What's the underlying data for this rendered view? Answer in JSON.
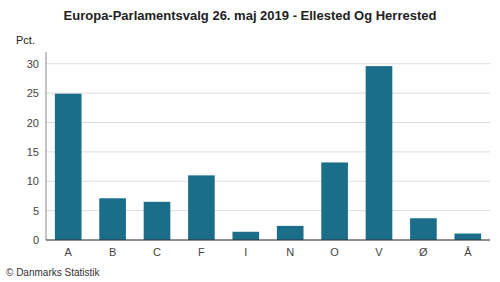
{
  "chart_data": {
    "type": "bar",
    "title": "Europa-Parlamentsvalg 26. maj 2019 - Ellested Og Herrested",
    "ylabel": "Pct.",
    "categories": [
      "A",
      "B",
      "C",
      "F",
      "I",
      "N",
      "O",
      "V",
      "Ø",
      "Å"
    ],
    "values": [
      24.9,
      7.1,
      6.5,
      11.0,
      1.4,
      2.4,
      13.2,
      29.6,
      3.7,
      1.1
    ],
    "color": "#1a6e8a",
    "ylim": [
      0,
      32
    ],
    "yticks": [
      0,
      5,
      10,
      15,
      20,
      25,
      30
    ],
    "grid": true,
    "annotations": [
      "© Danmarks Statistik"
    ]
  }
}
